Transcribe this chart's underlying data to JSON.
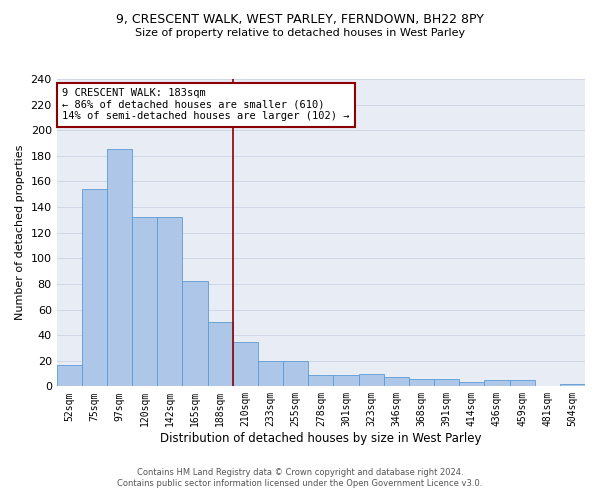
{
  "title_line1": "9, CRESCENT WALK, WEST PARLEY, FERNDOWN, BH22 8PY",
  "title_line2": "Size of property relative to detached houses in West Parley",
  "xlabel": "Distribution of detached houses by size in West Parley",
  "ylabel": "Number of detached properties",
  "bar_labels": [
    "52sqm",
    "75sqm",
    "97sqm",
    "120sqm",
    "142sqm",
    "165sqm",
    "188sqm",
    "210sqm",
    "233sqm",
    "255sqm",
    "278sqm",
    "301sqm",
    "323sqm",
    "346sqm",
    "368sqm",
    "391sqm",
    "414sqm",
    "436sqm",
    "459sqm",
    "481sqm",
    "504sqm"
  ],
  "bar_values": [
    17,
    154,
    185,
    132,
    132,
    82,
    50,
    35,
    20,
    20,
    9,
    9,
    10,
    7,
    6,
    6,
    3,
    5,
    5,
    0,
    2
  ],
  "bar_color": "#aec6e8",
  "bar_edge_color": "#5b9bd5",
  "vline_color": "#8b0000",
  "annotation_text": "9 CRESCENT WALK: 183sqm\n← 86% of detached houses are smaller (610)\n14% of semi-detached houses are larger (102) →",
  "annotation_box_color": "white",
  "annotation_box_edge_color": "#8b0000",
  "footer_line1": "Contains HM Land Registry data © Crown copyright and database right 2024.",
  "footer_line2": "Contains public sector information licensed under the Open Government Licence v3.0.",
  "ylim": [
    0,
    240
  ],
  "yticks": [
    0,
    20,
    40,
    60,
    80,
    100,
    120,
    140,
    160,
    180,
    200,
    220,
    240
  ],
  "grid_color": "#d0d8e8",
  "background_color": "#e8edf5"
}
